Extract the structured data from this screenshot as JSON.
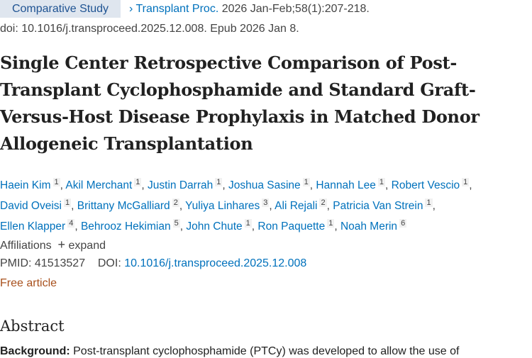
{
  "publication_type": "Comparative Study",
  "citation": {
    "journal": "Transplant Proc.",
    "details": "2026 Jan-Feb;58(1):207-218.",
    "doi_line": "doi: 10.1016/j.transproceed.2025.12.008. Epub 2026 Jan 8."
  },
  "title": "Single Center Retrospective Comparison of Post-Transplant Cyclophosphamide and Standard Graft-Versus-Host Disease Prophylaxis in Matched Donor Allogeneic Transplantation",
  "authors": [
    {
      "name": "Haein Kim",
      "aff": "1"
    },
    {
      "name": "Akil Merchant",
      "aff": "1"
    },
    {
      "name": "Justin Darrah",
      "aff": "1"
    },
    {
      "name": "Joshua Sasine",
      "aff": "1"
    },
    {
      "name": "Hannah Lee",
      "aff": "1"
    },
    {
      "name": "Robert Vescio",
      "aff": "1"
    },
    {
      "name": "David Oveisi",
      "aff": "1"
    },
    {
      "name": "Brittany McGalliard",
      "aff": "2"
    },
    {
      "name": "Yuliya Linhares",
      "aff": "3"
    },
    {
      "name": "Ali Rejali",
      "aff": "2"
    },
    {
      "name": "Patricia Van Strein",
      "aff": "1"
    },
    {
      "name": "Ellen Klapper",
      "aff": "4"
    },
    {
      "name": "Behrooz Hekimian",
      "aff": "5"
    },
    {
      "name": "John Chute",
      "aff": "1"
    },
    {
      "name": "Ron Paquette",
      "aff": "1"
    },
    {
      "name": "Noah Merin",
      "aff": "6"
    }
  ],
  "affiliations": {
    "label": "Affiliations",
    "expand": "expand"
  },
  "ids": {
    "pmid_label": "PMID:",
    "pmid": "41513527",
    "doi_label": "DOI:",
    "doi": "10.1016/j.transproceed.2025.12.008"
  },
  "free_article": "Free article",
  "abstract": {
    "heading": "Abstract",
    "background_label": "Background:",
    "background_text": "Post-transplant cyclophosphamide (PTCy) was developed to allow the use of"
  },
  "colors": {
    "link": "#0071bc",
    "free": "#a8501c",
    "tag_bg": "#dfe6ef"
  }
}
